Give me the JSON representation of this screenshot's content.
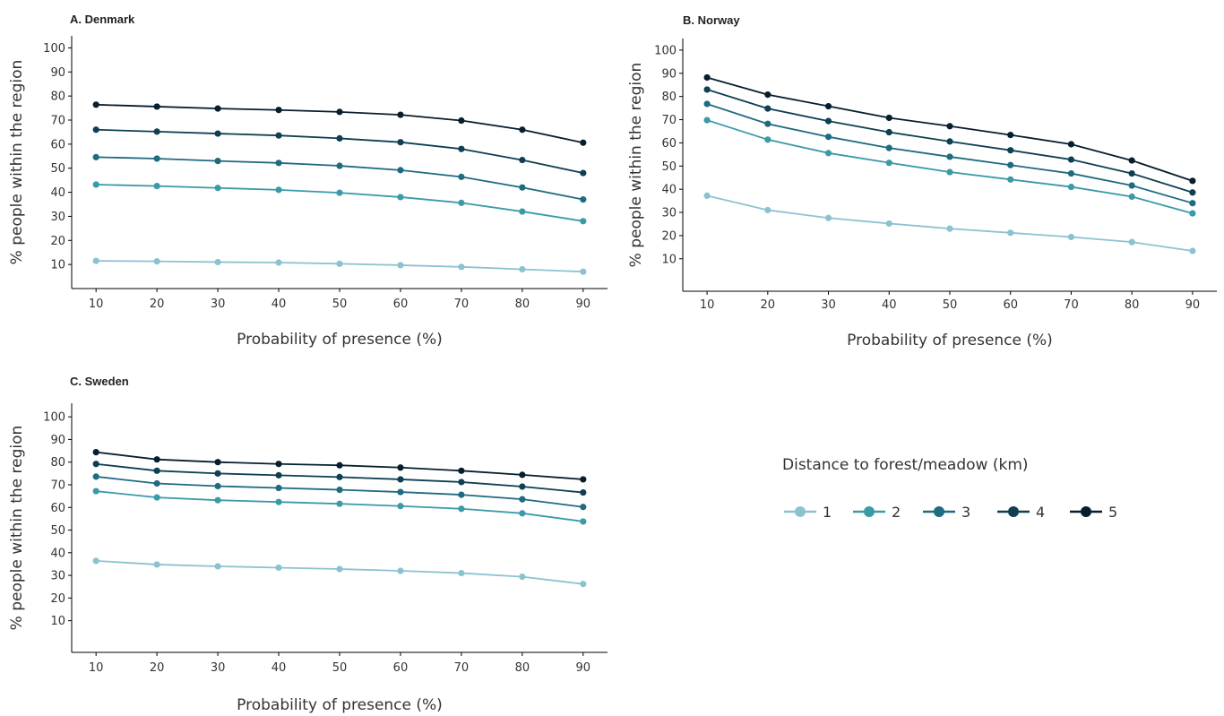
{
  "legend": {
    "title": "Distance to forest/meadow (km)",
    "items": [
      {
        "label": "1",
        "color": "#8cc2d0"
      },
      {
        "label": "2",
        "color": "#3a9aa6"
      },
      {
        "label": "3",
        "color": "#1f6b80"
      },
      {
        "label": "4",
        "color": "#0e3f52"
      },
      {
        "label": "5",
        "color": "#071e2d"
      }
    ]
  },
  "chart_data": [
    {
      "type": "line",
      "title": "A. Denmark",
      "xlabel": "Probability of presence (%)",
      "ylabel": "% people within the region",
      "x": [
        10,
        20,
        30,
        40,
        50,
        60,
        70,
        80,
        90
      ],
      "xlim": [
        6,
        94
      ],
      "ylim": [
        0,
        105
      ],
      "yticks": [
        10,
        20,
        30,
        40,
        50,
        60,
        70,
        80,
        90,
        100
      ],
      "series": [
        {
          "name": "1",
          "values": [
            11.5,
            11.3,
            11.0,
            10.8,
            10.3,
            9.7,
            9.0,
            8.0,
            7.0
          ]
        },
        {
          "name": "2",
          "values": [
            43.2,
            42.6,
            41.8,
            41.0,
            39.8,
            38.0,
            35.6,
            32.0,
            28.0
          ]
        },
        {
          "name": "3",
          "values": [
            54.6,
            54.0,
            53.0,
            52.2,
            51.0,
            49.2,
            46.4,
            42.0,
            37.0
          ]
        },
        {
          "name": "4",
          "values": [
            66.0,
            65.2,
            64.4,
            63.6,
            62.4,
            60.8,
            58.0,
            53.4,
            48.0
          ]
        },
        {
          "name": "5",
          "values": [
            76.4,
            75.6,
            74.8,
            74.2,
            73.4,
            72.2,
            69.8,
            66.0,
            60.6
          ]
        }
      ]
    },
    {
      "type": "line",
      "title": "B. Norway",
      "xlabel": "Probability of presence (%)",
      "ylabel": "% people within the region",
      "x": [
        10,
        20,
        30,
        40,
        50,
        60,
        70,
        80,
        90
      ],
      "xlim": [
        6,
        94
      ],
      "ylim": [
        -4,
        105
      ],
      "yticks": [
        10,
        20,
        30,
        40,
        50,
        60,
        70,
        80,
        90,
        100
      ],
      "series": [
        {
          "name": "1",
          "values": [
            37.2,
            31.0,
            27.6,
            25.2,
            23.0,
            21.2,
            19.4,
            17.2,
            13.4
          ]
        },
        {
          "name": "2",
          "values": [
            69.8,
            61.4,
            55.6,
            51.4,
            47.4,
            44.2,
            41.0,
            36.8,
            29.6
          ]
        },
        {
          "name": "3",
          "values": [
            76.8,
            68.2,
            62.6,
            57.8,
            54.0,
            50.4,
            46.8,
            41.6,
            34.0
          ]
        },
        {
          "name": "4",
          "values": [
            83.0,
            74.8,
            69.4,
            64.6,
            60.6,
            56.8,
            52.8,
            46.8,
            38.6
          ]
        },
        {
          "name": "5",
          "values": [
            88.2,
            80.8,
            75.8,
            70.8,
            67.2,
            63.4,
            59.4,
            52.4,
            43.6
          ]
        }
      ]
    },
    {
      "type": "line",
      "title": "C. Sweden",
      "xlabel": "Probability of presence (%)",
      "ylabel": "% people within the region",
      "x": [
        10,
        20,
        30,
        40,
        50,
        60,
        70,
        80,
        90
      ],
      "xlim": [
        6,
        94
      ],
      "ylim": [
        -4,
        106
      ],
      "yticks": [
        10,
        20,
        30,
        40,
        50,
        60,
        70,
        80,
        90,
        100
      ],
      "series": [
        {
          "name": "1",
          "values": [
            36.4,
            34.8,
            34.0,
            33.4,
            32.8,
            32.0,
            31.0,
            29.4,
            26.2
          ]
        },
        {
          "name": "2",
          "values": [
            67.2,
            64.4,
            63.2,
            62.4,
            61.6,
            60.6,
            59.4,
            57.4,
            53.8
          ]
        },
        {
          "name": "3",
          "values": [
            73.6,
            70.6,
            69.4,
            68.6,
            67.8,
            66.8,
            65.6,
            63.6,
            60.2
          ]
        },
        {
          "name": "4",
          "values": [
            79.2,
            76.2,
            75.0,
            74.2,
            73.4,
            72.4,
            71.2,
            69.2,
            66.6
          ]
        },
        {
          "name": "5",
          "values": [
            84.4,
            81.2,
            80.0,
            79.2,
            78.6,
            77.6,
            76.2,
            74.4,
            72.4
          ]
        }
      ]
    }
  ]
}
